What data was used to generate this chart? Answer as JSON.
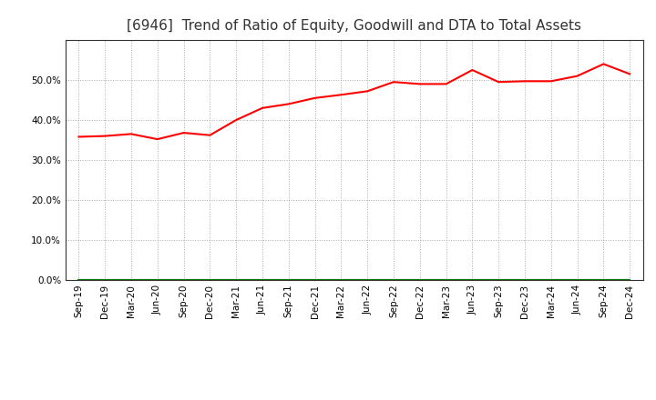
{
  "title": "[6946]  Trend of Ratio of Equity, Goodwill and DTA to Total Assets",
  "x_labels": [
    "Sep-19",
    "Dec-19",
    "Mar-20",
    "Jun-20",
    "Sep-20",
    "Dec-20",
    "Mar-21",
    "Jun-21",
    "Sep-21",
    "Dec-21",
    "Mar-22",
    "Jun-22",
    "Sep-22",
    "Dec-22",
    "Mar-23",
    "Jun-23",
    "Sep-23",
    "Dec-23",
    "Mar-24",
    "Jun-24",
    "Sep-24",
    "Dec-24"
  ],
  "equity": [
    0.358,
    0.36,
    0.365,
    0.352,
    0.368,
    0.362,
    0.4,
    0.43,
    0.44,
    0.455,
    0.463,
    0.472,
    0.495,
    0.49,
    0.49,
    0.525,
    0.495,
    0.497,
    0.497,
    0.51,
    0.54,
    0.515
  ],
  "goodwill": [
    0,
    0,
    0,
    0,
    0,
    0,
    0,
    0,
    0,
    0,
    0,
    0,
    0,
    0,
    0,
    0,
    0,
    0,
    0,
    0,
    0,
    0
  ],
  "dta": [
    0,
    0,
    0,
    0,
    0,
    0,
    0,
    0,
    0,
    0,
    0,
    0,
    0,
    0,
    0,
    0,
    0,
    0,
    0,
    0,
    0,
    0
  ],
  "equity_color": "#FF0000",
  "goodwill_color": "#0000FF",
  "dta_color": "#008000",
  "ylim": [
    0.0,
    0.6
  ],
  "yticks": [
    0.0,
    0.1,
    0.2,
    0.3,
    0.4,
    0.5
  ],
  "background_color": "#FFFFFF",
  "grid_color": "#AAAAAA",
  "title_fontsize": 11,
  "tick_fontsize": 7.5,
  "legend_fontsize": 9
}
